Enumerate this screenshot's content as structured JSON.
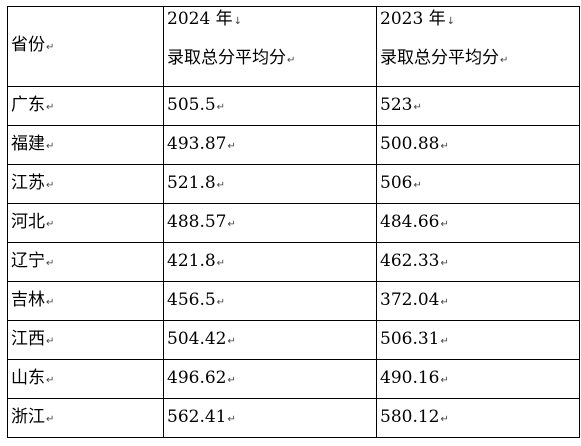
{
  "table": {
    "header": {
      "province": "省份",
      "col2024_year": "2024 年",
      "col2024_label": "录取总分平均分",
      "col2023_year": "2023 年",
      "col2023_label": "录取总分平均分"
    },
    "rows": [
      {
        "province": "广东",
        "score_2024": "505.5",
        "score_2023": "523"
      },
      {
        "province": "福建",
        "score_2024": "493.87",
        "score_2023": "500.88"
      },
      {
        "province": "江苏",
        "score_2024": "521.8",
        "score_2023": "506"
      },
      {
        "province": "河北",
        "score_2024": "488.57",
        "score_2023": "484.66"
      },
      {
        "province": "辽宁",
        "score_2024": "421.8",
        "score_2023": "462.33"
      },
      {
        "province": "吉林",
        "score_2024": "456.5",
        "score_2023": "372.04"
      },
      {
        "province": "江西",
        "score_2024": "504.42",
        "score_2023": "506.31"
      },
      {
        "province": "山东",
        "score_2024": "496.62",
        "score_2023": "490.16"
      },
      {
        "province": "浙江",
        "score_2024": "562.41",
        "score_2023": "580.12"
      }
    ],
    "line_break_mark": "↓",
    "paragraph_mark": "↵"
  }
}
